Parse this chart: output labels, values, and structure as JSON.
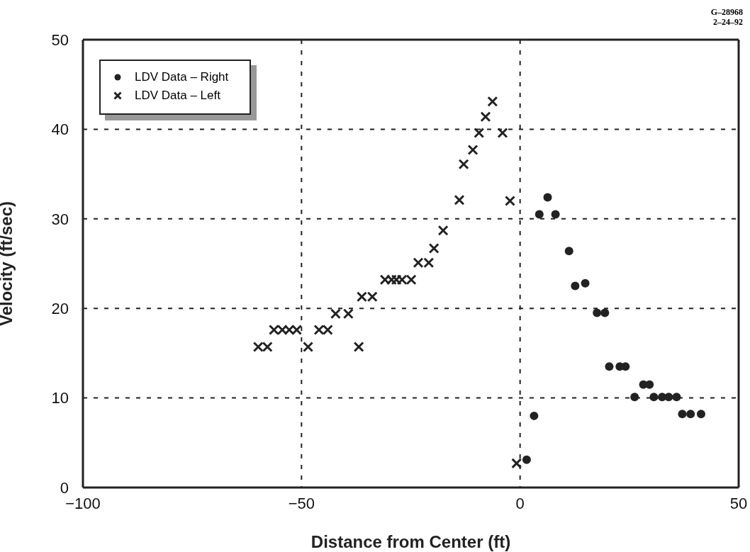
{
  "chart_data": {
    "type": "scatter",
    "xlabel": "Distance from Center (ft)",
    "ylabel": "Velocity (ft/sec)",
    "annotations": [
      "G–28968",
      "2–24–92"
    ],
    "xlim": [
      -100,
      50
    ],
    "xticks": [
      -100,
      -50,
      0,
      50
    ],
    "ylim": [
      0,
      50
    ],
    "yticks": [
      0,
      10,
      20,
      30,
      40,
      50
    ],
    "grid": true,
    "legend": "top left",
    "series": [
      {
        "name": "LDV Data – Right",
        "color": "#222222",
        "marker": "circle",
        "x": [
          1.5,
          3.2,
          4.4,
          6.3,
          8.1,
          11.2,
          12.6,
          14.9,
          17.6,
          19.4,
          20.4,
          22.8,
          24.1,
          26.2,
          28.2,
          29.6,
          30.6,
          32.5,
          34,
          35.8,
          37.1,
          39,
          41.4
        ],
        "values": [
          3.1,
          8.0,
          30.5,
          32.4,
          30.5,
          26.4,
          22.5,
          22.8,
          19.5,
          19.5,
          13.5,
          13.5,
          13.5,
          10.1,
          11.5,
          11.5,
          10.1,
          10.1,
          10.1,
          10.1,
          8.2,
          8.2,
          8.2
        ]
      },
      {
        "name": "LDV Data – Left",
        "color": "#222222",
        "marker": "cross",
        "x": [
          -59.9,
          -57.8,
          -56.3,
          -54.4,
          -52.8,
          -51.1,
          -48.5,
          -46,
          -44,
          -42.2,
          -39.3,
          -36.9,
          -36.2,
          -33.8,
          -30.9,
          -29.4,
          -28.3,
          -27,
          -24.9,
          -23.3,
          -20.9,
          -19.7,
          -17.6,
          -13.9,
          -12.9,
          -10.8,
          -9.4,
          -7.9,
          -6.3,
          -4.0,
          -2.3,
          -0.8
        ],
        "values": [
          15.7,
          15.7,
          17.6,
          17.6,
          17.6,
          17.6,
          15.7,
          17.6,
          17.6,
          19.4,
          19.4,
          15.7,
          21.3,
          21.3,
          23.2,
          23.2,
          23.2,
          23.2,
          23.2,
          25.1,
          25.1,
          26.7,
          28.7,
          32.1,
          36.1,
          37.7,
          39.6,
          41.4,
          43.1,
          39.6,
          32.0,
          2.7
        ]
      }
    ]
  }
}
